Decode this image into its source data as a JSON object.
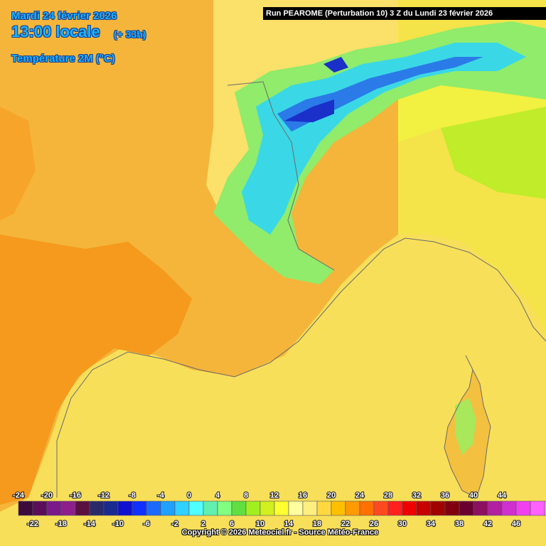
{
  "header": {
    "date": "Mardi 24 février 2026",
    "time": "13:00 locale",
    "lead": "(+ 33h)",
    "variable": "Température 2M (°C)"
  },
  "run_info": "Run PEAROME (Perturbation 10) 3 Z du Lundi 23 février 2026",
  "legend": {
    "labels_top": [
      "-24",
      "-20",
      "-16",
      "-12",
      "-8",
      "-4",
      "0",
      "4",
      "8",
      "12",
      "16",
      "20",
      "24",
      "28",
      "32",
      "36",
      "40",
      "44"
    ],
    "labels_bottom": [
      "-22",
      "-18",
      "-14",
      "-10",
      "-6",
      "-2",
      "2",
      "6",
      "10",
      "14",
      "18",
      "22",
      "26",
      "30",
      "34",
      "38",
      "42",
      "46"
    ],
    "colors": [
      "#3d0a3d",
      "#5a0e5a",
      "#7a1a8a",
      "#8c1f8c",
      "#5a1040",
      "#2a2a6a",
      "#1a2a90",
      "#1010d0",
      "#1030ff",
      "#1a6aff",
      "#20a0ff",
      "#30d0ff",
      "#50ffff",
      "#60f0b0",
      "#80ff80",
      "#60e040",
      "#a0f020",
      "#d0f020",
      "#ffff30",
      "#ffffa0",
      "#ffef80",
      "#ffd840",
      "#ffc000",
      "#ff9a00",
      "#ff7000",
      "#ff4a20",
      "#ff2020",
      "#f00000",
      "#c80000",
      "#a00000",
      "#800010",
      "#6a0030",
      "#8c1060",
      "#b020a0",
      "#d030d0",
      "#f040f0",
      "#ff60ff",
      "#ff90ff"
    ]
  },
  "copyright": "Copyright © 2026 Meteociel.fr - Source Météo-France"
}
